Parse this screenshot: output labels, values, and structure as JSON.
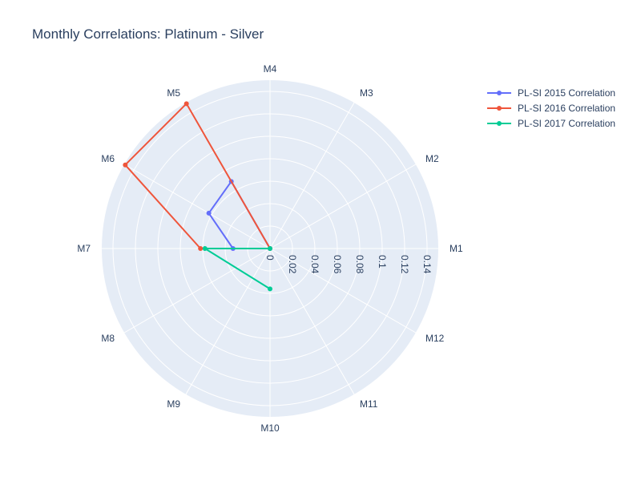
{
  "chart_data": {
    "type": "line",
    "subtype": "polar",
    "title": "Monthly Correlations: Platinum - Silver",
    "angular_categories": [
      "M1",
      "M2",
      "M3",
      "M4",
      "M5",
      "M6",
      "M7",
      "M8",
      "M9",
      "M10",
      "M11",
      "M12"
    ],
    "radial_range": [
      0,
      0.15
    ],
    "radial_ticks": [
      0,
      0.02,
      0.04,
      0.06,
      0.08,
      0.1,
      0.12,
      0.14
    ],
    "radial_tick_labels": [
      "0",
      "0.02",
      "0.04",
      "0.06",
      "0.08",
      "0.1",
      "0.12",
      "0.14"
    ],
    "grid": true,
    "legend_position": "top-right",
    "background_color": "#e5ecf6",
    "series": [
      {
        "name": "PL-SI 2015 Correlation",
        "color": "#636efa",
        "points": [
          {
            "theta": "M1",
            "r": 0
          },
          {
            "theta": "M5",
            "r": 0.069
          },
          {
            "theta": "M6",
            "r": 0.063
          },
          {
            "theta": "M7",
            "r": 0.033
          },
          {
            "theta": "M10",
            "r": 0
          }
        ]
      },
      {
        "name": "PL-SI 2016 Correlation",
        "color": "#ef553b",
        "points": [
          {
            "theta": "M1",
            "r": 0
          },
          {
            "theta": "M5",
            "r": 0.149
          },
          {
            "theta": "M6",
            "r": 0.149
          },
          {
            "theta": "M7",
            "r": 0.062
          }
        ]
      },
      {
        "name": "PL-SI 2017 Correlation",
        "color": "#00cc96",
        "points": [
          {
            "theta": "M1",
            "r": 0
          },
          {
            "theta": "M7",
            "r": 0.058
          },
          {
            "theta": "M10",
            "r": 0.036
          }
        ]
      }
    ]
  }
}
